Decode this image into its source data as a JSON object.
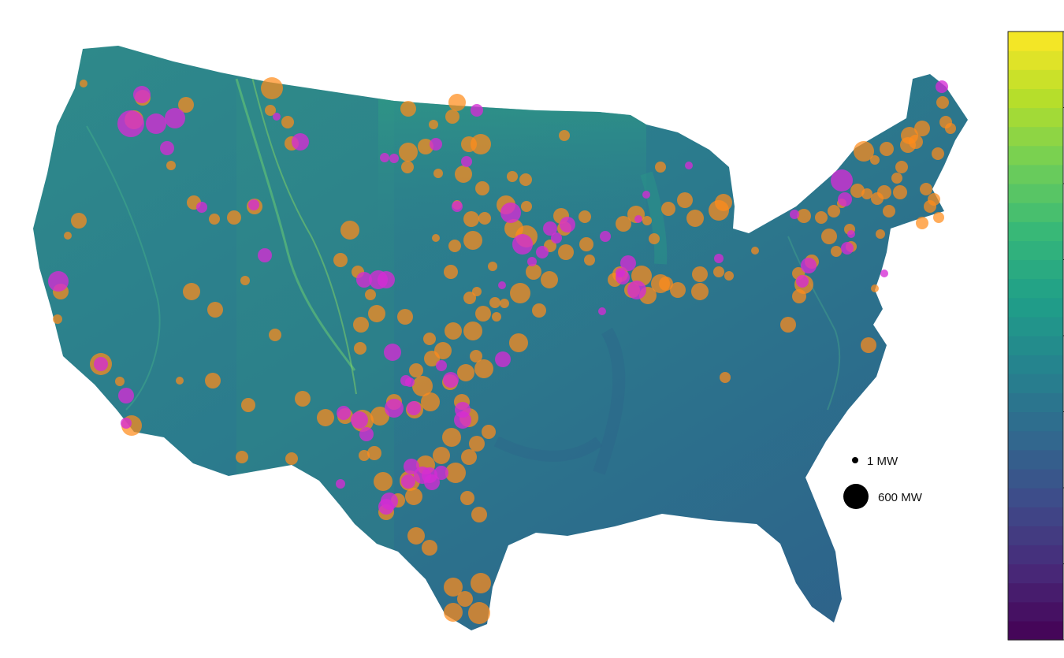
{
  "colors": {
    "land_base": "#2f7e8c",
    "terrain_highlight": "#3fae78",
    "terrain_dark": "#2c5f86",
    "orange_site": "#ff8c1a",
    "magenta_site": "#d52bd5",
    "legend_marker": "#000000",
    "colorbar_stops": [
      "#440154",
      "#482878",
      "#3e4a89",
      "#31688e",
      "#26828e",
      "#1f9e89",
      "#35b779",
      "#6ece58",
      "#b5de2b",
      "#fde725"
    ]
  },
  "colorbar": {
    "min": 0,
    "max": 16,
    "ticks": [
      "0",
      "2",
      "4",
      "6",
      "8",
      "10",
      "12",
      "14",
      "16"
    ],
    "bands": 32
  },
  "size_legend": {
    "small_label": "1 MW",
    "large_label": "600 MW"
  },
  "sites": {
    "orange": [
      [
        345,
        112,
        14
      ],
      [
        343,
        140,
        7
      ],
      [
        365,
        155,
        8
      ],
      [
        370,
        182,
        9
      ],
      [
        236,
        133,
        10
      ],
      [
        181,
        124,
        10
      ],
      [
        170,
        152,
        12
      ],
      [
        217,
        210,
        6
      ],
      [
        246,
        257,
        9
      ],
      [
        272,
        278,
        7
      ],
      [
        297,
        276,
        9
      ],
      [
        323,
        262,
        10
      ],
      [
        243,
        370,
        11
      ],
      [
        273,
        393,
        10
      ],
      [
        311,
        356,
        6
      ],
      [
        349,
        425,
        8
      ],
      [
        270,
        483,
        10
      ],
      [
        315,
        514,
        9
      ],
      [
        384,
        506,
        10
      ],
      [
        307,
        580,
        8
      ],
      [
        370,
        582,
        8
      ],
      [
        228,
        483,
        5
      ],
      [
        100,
        280,
        10
      ],
      [
        86,
        299,
        5
      ],
      [
        77,
        370,
        10
      ],
      [
        73,
        405,
        6
      ],
      [
        152,
        484,
        6
      ],
      [
        167,
        540,
        13
      ],
      [
        128,
        462,
        14
      ],
      [
        106,
        106,
        5
      ],
      [
        444,
        292,
        12
      ],
      [
        432,
        330,
        9
      ],
      [
        454,
        345,
        8
      ],
      [
        470,
        374,
        7
      ],
      [
        478,
        398,
        11
      ],
      [
        458,
        412,
        10
      ],
      [
        514,
        402,
        10
      ],
      [
        457,
        442,
        8
      ],
      [
        518,
        138,
        10
      ],
      [
        550,
        158,
        6
      ],
      [
        580,
        130,
        11
      ],
      [
        574,
        148,
        9
      ],
      [
        610,
        183,
        13
      ],
      [
        595,
        183,
        10
      ],
      [
        518,
        193,
        12
      ],
      [
        517,
        212,
        8
      ],
      [
        540,
        186,
        10
      ],
      [
        556,
        220,
        6
      ],
      [
        588,
        221,
        11
      ],
      [
        612,
        239,
        9
      ],
      [
        650,
        224,
        7
      ],
      [
        667,
        228,
        8
      ],
      [
        716,
        172,
        7
      ],
      [
        642,
        260,
        12
      ],
      [
        615,
        277,
        8
      ],
      [
        668,
        262,
        7
      ],
      [
        598,
        278,
        10
      ],
      [
        580,
        260,
        6
      ],
      [
        600,
        305,
        12
      ],
      [
        577,
        312,
        8
      ],
      [
        553,
        302,
        5
      ],
      [
        625,
        338,
        6
      ],
      [
        572,
        345,
        9
      ],
      [
        652,
        290,
        12
      ],
      [
        668,
        300,
        14
      ],
      [
        716,
        290,
        9
      ],
      [
        718,
        320,
        10
      ],
      [
        698,
        312,
        8
      ],
      [
        744,
        310,
        9
      ],
      [
        712,
        274,
        10
      ],
      [
        742,
        275,
        8
      ],
      [
        748,
        330,
        7
      ],
      [
        677,
        345,
        10
      ],
      [
        697,
        355,
        11
      ],
      [
        660,
        372,
        13
      ],
      [
        684,
        394,
        9
      ],
      [
        640,
        385,
        6
      ],
      [
        628,
        384,
        7
      ],
      [
        605,
        370,
        6
      ],
      [
        596,
        378,
        8
      ],
      [
        613,
        398,
        10
      ],
      [
        630,
        402,
        6
      ],
      [
        600,
        420,
        12
      ],
      [
        658,
        435,
        12
      ],
      [
        575,
        420,
        11
      ],
      [
        545,
        430,
        8
      ],
      [
        562,
        445,
        11
      ],
      [
        548,
        455,
        10
      ],
      [
        528,
        470,
        9
      ],
      [
        604,
        452,
        8
      ],
      [
        614,
        468,
        12
      ],
      [
        591,
        473,
        11
      ],
      [
        571,
        485,
        10
      ],
      [
        536,
        490,
        13
      ],
      [
        546,
        510,
        12
      ],
      [
        526,
        520,
        11
      ],
      [
        500,
        510,
        10
      ],
      [
        482,
        528,
        12
      ],
      [
        460,
        534,
        14
      ],
      [
        438,
        528,
        10
      ],
      [
        413,
        530,
        11
      ],
      [
        586,
        510,
        10
      ],
      [
        595,
        530,
        12
      ],
      [
        620,
        548,
        9
      ],
      [
        605,
        563,
        10
      ],
      [
        573,
        555,
        12
      ],
      [
        560,
        578,
        11
      ],
      [
        595,
        580,
        10
      ],
      [
        578,
        600,
        13
      ],
      [
        540,
        590,
        12
      ],
      [
        520,
        610,
        13
      ],
      [
        525,
        630,
        11
      ],
      [
        505,
        635,
        9
      ],
      [
        486,
        611,
        12
      ],
      [
        490,
        650,
        10
      ],
      [
        475,
        575,
        9
      ],
      [
        462,
        578,
        7
      ],
      [
        593,
        632,
        9
      ],
      [
        608,
        653,
        10
      ],
      [
        528,
        680,
        11
      ],
      [
        545,
        695,
        10
      ],
      [
        575,
        745,
        12
      ],
      [
        575,
        777,
        12
      ],
      [
        610,
        740,
        13
      ],
      [
        608,
        778,
        14
      ],
      [
        590,
        760,
        10
      ],
      [
        807,
        272,
        11
      ],
      [
        791,
        284,
        10
      ],
      [
        848,
        265,
        9
      ],
      [
        869,
        254,
        10
      ],
      [
        838,
        212,
        7
      ],
      [
        882,
        277,
        11
      ],
      [
        912,
        267,
        13
      ],
      [
        918,
        257,
        11
      ],
      [
        830,
        303,
        7
      ],
      [
        821,
        280,
        6
      ],
      [
        787,
        348,
        10
      ],
      [
        780,
        355,
        9
      ],
      [
        814,
        350,
        13
      ],
      [
        838,
        360,
        12
      ],
      [
        822,
        375,
        11
      ],
      [
        802,
        368,
        10
      ],
      [
        845,
        360,
        9
      ],
      [
        860,
        368,
        10
      ],
      [
        888,
        348,
        10
      ],
      [
        912,
        345,
        7
      ],
      [
        925,
        350,
        6
      ],
      [
        888,
        370,
        11
      ],
      [
        958,
        318,
        5
      ],
      [
        920,
        479,
        7
      ],
      [
        1000,
        412,
        10
      ],
      [
        1014,
        376,
        9
      ],
      [
        1020,
        361,
        12
      ],
      [
        1030,
        332,
        9
      ],
      [
        1013,
        347,
        8
      ],
      [
        1102,
        438,
        10
      ],
      [
        1020,
        274,
        9
      ],
      [
        1042,
        276,
        8
      ],
      [
        1052,
        300,
        10
      ],
      [
        1058,
        268,
        8
      ],
      [
        1080,
        313,
        7
      ],
      [
        1113,
        252,
        8
      ],
      [
        1122,
        244,
        9
      ],
      [
        1128,
        268,
        8
      ],
      [
        1088,
        242,
        9
      ],
      [
        1100,
        246,
        7
      ],
      [
        1096,
        192,
        13
      ],
      [
        1125,
        189,
        9
      ],
      [
        1110,
        203,
        6
      ],
      [
        1144,
        212,
        8
      ],
      [
        1154,
        172,
        11
      ],
      [
        1162,
        180,
        9
      ],
      [
        1170,
        163,
        10
      ],
      [
        1152,
        184,
        10
      ],
      [
        1175,
        240,
        8
      ],
      [
        1185,
        253,
        8
      ],
      [
        1180,
        262,
        8
      ],
      [
        1190,
        195,
        8
      ],
      [
        1200,
        155,
        8
      ],
      [
        1196,
        130,
        8
      ],
      [
        1206,
        163,
        7
      ],
      [
        1170,
        283,
        8
      ],
      [
        1117,
        297,
        6
      ],
      [
        1138,
        226,
        7
      ],
      [
        1142,
        244,
        9
      ],
      [
        1191,
        276,
        7
      ],
      [
        1110,
        366,
        5
      ],
      [
        1078,
        291,
        7
      ],
      [
        1068,
        258,
        6
      ],
      [
        1061,
        319,
        7
      ]
    ],
    "magenta": [
      [
        180,
        120,
        11
      ],
      [
        166,
        157,
        17
      ],
      [
        198,
        157,
        13
      ],
      [
        222,
        150,
        13
      ],
      [
        212,
        188,
        9
      ],
      [
        256,
        263,
        7
      ],
      [
        322,
        260,
        7
      ],
      [
        336,
        324,
        9
      ],
      [
        381,
        180,
        11
      ],
      [
        351,
        148,
        5
      ],
      [
        488,
        200,
        6
      ],
      [
        500,
        201,
        6
      ],
      [
        605,
        140,
        8
      ],
      [
        592,
        205,
        7
      ],
      [
        553,
        183,
        8
      ],
      [
        74,
        357,
        13
      ],
      [
        128,
        462,
        9
      ],
      [
        160,
        502,
        10
      ],
      [
        160,
        537,
        7
      ],
      [
        580,
        262,
        7
      ],
      [
        648,
        270,
        13
      ],
      [
        663,
        310,
        13
      ],
      [
        698,
        290,
        9
      ],
      [
        720,
        285,
        10
      ],
      [
        688,
        320,
        8
      ],
      [
        675,
        332,
        6
      ],
      [
        706,
        302,
        7
      ],
      [
        768,
        300,
        7
      ],
      [
        808,
        368,
        12
      ],
      [
        790,
        352,
        9
      ],
      [
        797,
        334,
        10
      ],
      [
        787,
        346,
        6
      ],
      [
        810,
        278,
        5
      ],
      [
        820,
        247,
        5
      ],
      [
        874,
        210,
        5
      ],
      [
        912,
        328,
        6
      ],
      [
        637,
        362,
        5
      ],
      [
        764,
        395,
        5
      ],
      [
        480,
        355,
        12
      ],
      [
        490,
        355,
        11
      ],
      [
        462,
        355,
        10
      ],
      [
        498,
        447,
        11
      ],
      [
        515,
        483,
        7
      ],
      [
        520,
        485,
        6
      ],
      [
        572,
        482,
        10
      ],
      [
        560,
        464,
        7
      ],
      [
        638,
        456,
        10
      ],
      [
        456,
        533,
        11
      ],
      [
        465,
        551,
        9
      ],
      [
        436,
        524,
        9
      ],
      [
        500,
        518,
        12
      ],
      [
        525,
        518,
        9
      ],
      [
        587,
        533,
        11
      ],
      [
        587,
        520,
        10
      ],
      [
        432,
        614,
        6
      ],
      [
        494,
        636,
        11
      ],
      [
        490,
        643,
        10
      ],
      [
        522,
        592,
        10
      ],
      [
        518,
        611,
        9
      ],
      [
        536,
        603,
        11
      ],
      [
        545,
        603,
        10
      ],
      [
        560,
        600,
        9
      ],
      [
        548,
        612,
        10
      ],
      [
        1018,
        357,
        8
      ],
      [
        1026,
        337,
        10
      ],
      [
        1008,
        272,
        6
      ],
      [
        1068,
        229,
        14
      ],
      [
        1072,
        253,
        9
      ],
      [
        1122,
        347,
        5
      ],
      [
        1195,
        110,
        8
      ],
      [
        1075,
        315,
        8
      ],
      [
        1080,
        297,
        5
      ]
    ]
  }
}
